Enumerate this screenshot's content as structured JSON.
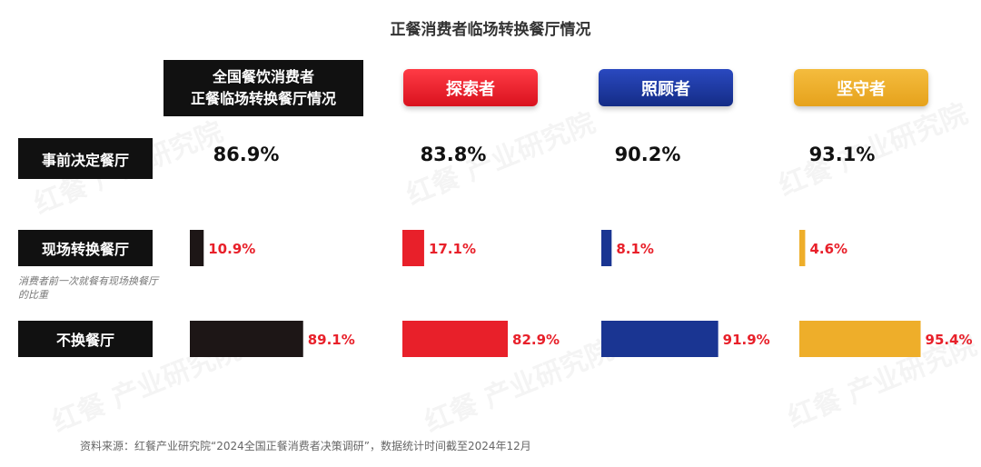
{
  "title": "正餐消费者临场转换餐厅情况",
  "corner_header": [
    "全国餐饮消费者",
    "正餐临场转换餐厅情况"
  ],
  "segments": [
    {
      "name": "探索者",
      "color": "#E8202A"
    },
    {
      "name": "照顾者",
      "color": "#1A3592"
    },
    {
      "name": "坚守者",
      "color": "#EEAE2A"
    }
  ],
  "corner_color": "#1D1616",
  "rows": {
    "pre_decided": "事前决定餐厅",
    "switch": "现场转换餐厅",
    "no_switch": "不换餐厅"
  },
  "note": "消费者前一次就餐有现场换餐厅的比重",
  "watermark": "红餐 产业研究院",
  "source": "资料来源：红餐产业研究院“2024全国正餐消费者决策调研”，数据统计时间截至2024年12月",
  "chart_data": {
    "type": "bar",
    "title": "正餐消费者临场转换餐厅情况",
    "categories": [
      "全国餐饮消费者正餐临场转换餐厅情况",
      "探索者",
      "照顾者",
      "坚守者"
    ],
    "series": [
      {
        "name": "事前决定餐厅",
        "values": [
          86.9,
          83.8,
          90.2,
          93.1
        ],
        "labels": [
          "86.9%",
          "83.8%",
          "90.2%",
          "93.1%"
        ]
      },
      {
        "name": "现场转换餐厅",
        "values": [
          10.9,
          17.1,
          8.1,
          4.6
        ],
        "labels": [
          "10.9%",
          "17.1%",
          "8.1%",
          "4.6%"
        ]
      },
      {
        "name": "不换餐厅",
        "values": [
          89.1,
          82.9,
          91.9,
          95.4
        ],
        "labels": [
          "89.1%",
          "82.9%",
          "91.9%",
          "95.4%"
        ]
      }
    ],
    "value_label_color": "#E8202A",
    "ylim": [
      0,
      100
    ]
  }
}
